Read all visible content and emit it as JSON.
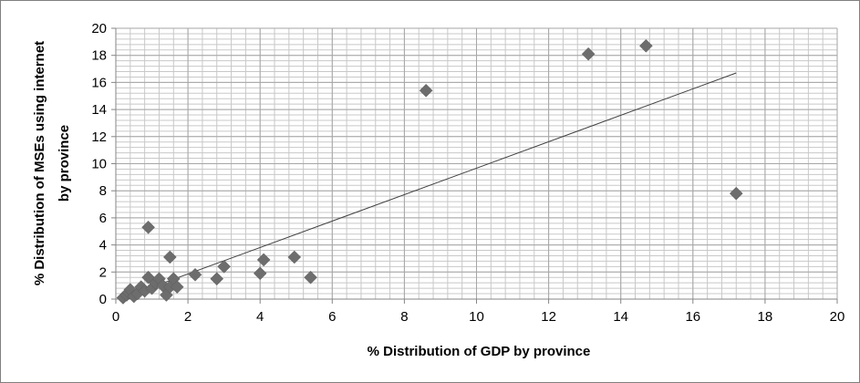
{
  "chart_data": {
    "type": "scatter",
    "title": "",
    "xlabel": "% Distribution of GDP by province",
    "ylabel_line1": "% Distribution of MSEs using internet",
    "ylabel_line2": "by province",
    "xlim": [
      0,
      20
    ],
    "ylim": [
      0,
      20
    ],
    "x_ticks": [
      "0",
      "2",
      "4",
      "6",
      "8",
      "10",
      "12",
      "14",
      "16",
      "18",
      "20"
    ],
    "y_ticks": [
      "0",
      "2",
      "4",
      "6",
      "8",
      "10",
      "12",
      "14",
      "16",
      "18",
      "20"
    ],
    "grid": true,
    "legend": "none",
    "marker": "diamond",
    "colors": {
      "marker": "#6d6d6d",
      "grid_major": "#a6a6a6",
      "grid_minor": "#c8c8c8",
      "trendline": "#404040"
    },
    "points": [
      {
        "x": 0.2,
        "y": 0.1
      },
      {
        "x": 0.3,
        "y": 0.3
      },
      {
        "x": 0.35,
        "y": 0.5
      },
      {
        "x": 0.4,
        "y": 0.7
      },
      {
        "x": 0.5,
        "y": 0.2
      },
      {
        "x": 0.6,
        "y": 0.4
      },
      {
        "x": 0.7,
        "y": 0.9
      },
      {
        "x": 0.8,
        "y": 0.6
      },
      {
        "x": 0.9,
        "y": 1.6
      },
      {
        "x": 0.9,
        "y": 5.3
      },
      {
        "x": 1.0,
        "y": 0.8
      },
      {
        "x": 1.1,
        "y": 1.2
      },
      {
        "x": 1.2,
        "y": 1.5
      },
      {
        "x": 1.3,
        "y": 1.0
      },
      {
        "x": 1.4,
        "y": 0.3
      },
      {
        "x": 1.5,
        "y": 3.1
      },
      {
        "x": 1.5,
        "y": 0.9
      },
      {
        "x": 1.6,
        "y": 1.5
      },
      {
        "x": 1.7,
        "y": 0.9
      },
      {
        "x": 2.2,
        "y": 1.8
      },
      {
        "x": 2.8,
        "y": 1.5
      },
      {
        "x": 3.0,
        "y": 2.4
      },
      {
        "x": 4.0,
        "y": 1.9
      },
      {
        "x": 4.1,
        "y": 2.9
      },
      {
        "x": 4.95,
        "y": 3.1
      },
      {
        "x": 5.4,
        "y": 1.6
      },
      {
        "x": 8.6,
        "y": 15.4
      },
      {
        "x": 13.1,
        "y": 18.1
      },
      {
        "x": 14.7,
        "y": 18.7
      },
      {
        "x": 17.2,
        "y": 7.8
      }
    ],
    "trendline": {
      "type": "linear",
      "x": [
        0.2,
        17.2
      ],
      "y": [
        0.1,
        16.7
      ]
    }
  }
}
